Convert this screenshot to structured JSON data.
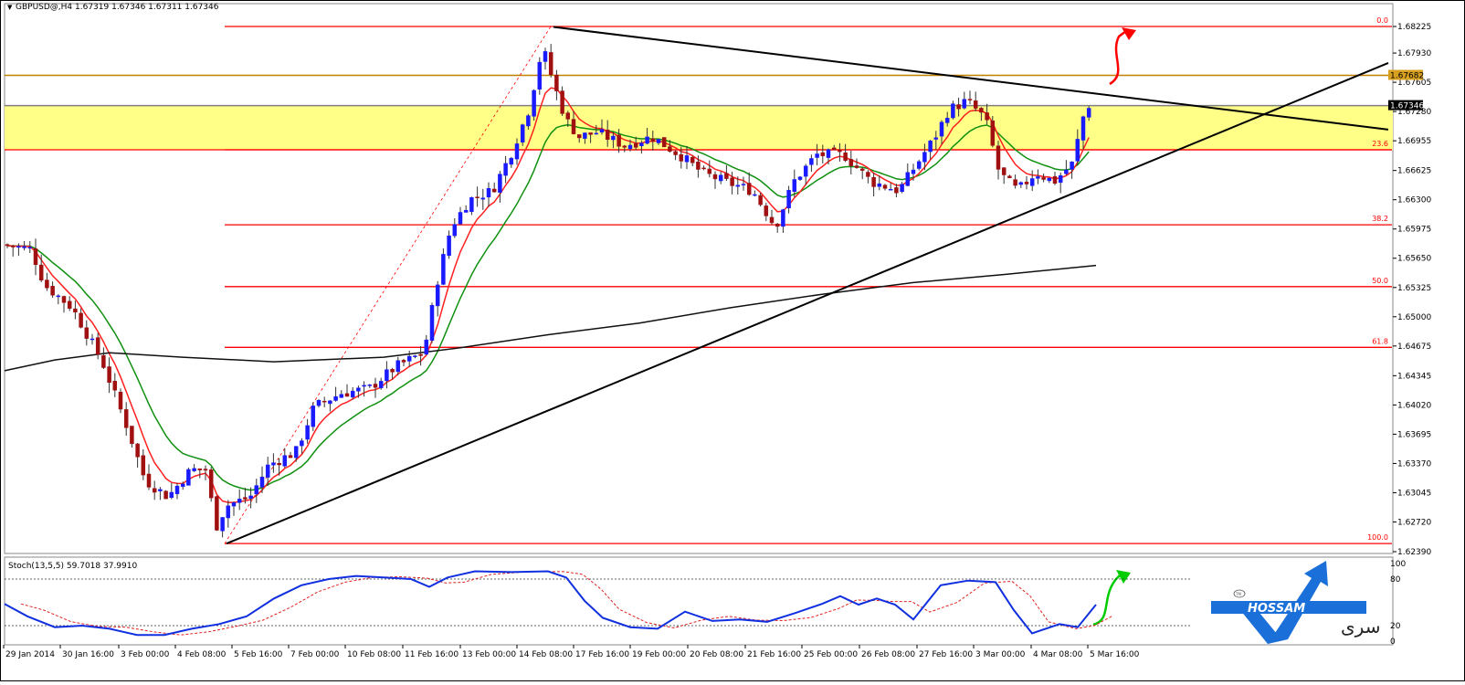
{
  "header": {
    "symbol_line": "GBPUSD@,H4  1.67319 1.67346 1.67311 1.67346",
    "dropdown_glyph": "▼"
  },
  "stoch_header": "Stoch(13,5,5) 59.7018 37.9910",
  "logo": {
    "text": "HOSSAM",
    "arabic": "سرى",
    "badge": "TM",
    "icon": "hossam-arrow-logo"
  },
  "colors": {
    "fib_line": "#ff0000",
    "resistance_line": "#c08000",
    "yellow_zone": "#ffff88",
    "bull_candle": "#1a1aff",
    "bear_candle": "#a01010",
    "green_ma": "#109010",
    "red_ma": "#ff2020",
    "long_ma": "#101010",
    "stoch_main": "#1030e0",
    "stoch_signal": "#e02020",
    "price_tag_bg": "#d8a020",
    "current_tag_bg": "#000000",
    "logo_blue": "#1a6fd8"
  },
  "price_axis": {
    "labels": [
      "1.68225",
      "1.67930",
      "1.67605",
      "1.67280",
      "1.66955",
      "1.66625",
      "1.66300",
      "1.65975",
      "1.65650",
      "1.65325",
      "1.65000",
      "1.64675",
      "1.64345",
      "1.64020",
      "1.63695",
      "1.63370",
      "1.63045",
      "1.62720",
      "1.62390"
    ],
    "min": 1.6239,
    "max": 1.68225,
    "tag_resistance": "1.67682",
    "tag_current": "1.67346"
  },
  "stoch_axis": {
    "labels": [
      "100",
      "80",
      "20",
      "0"
    ]
  },
  "time_axis": {
    "labels": [
      "29 Jan 2014",
      "30 Jan 16:00",
      "3 Feb 00:00",
      "4 Feb 08:00",
      "5 Feb 16:00",
      "7 Feb 00:00",
      "10 Feb 08:00",
      "11 Feb 16:00",
      "13 Feb 00:00",
      "14 Feb 08:00",
      "17 Feb 16:00",
      "19 Feb 00:00",
      "20 Feb 08:00",
      "21 Feb 16:00",
      "25 Feb 00:00",
      "26 Feb 08:00",
      "27 Feb 16:00",
      "3 Mar 00:00",
      "4 Mar 08:00",
      "5 Mar 16:00"
    ]
  },
  "fib_levels": [
    {
      "label": "0.0",
      "price": 1.68225
    },
    {
      "label": "23.6",
      "price": 1.66855
    },
    {
      "label": "38.2",
      "price": 1.66022
    },
    {
      "label": "50.0",
      "price": 1.65335
    },
    {
      "label": "61.8",
      "price": 1.6466
    },
    {
      "label": "100.0",
      "price": 1.6248
    }
  ],
  "chart_data": {
    "type": "candlestick",
    "title": "GBPUSD@,H4  1.67319 1.67346 1.67311 1.67346",
    "timeframe": "H4",
    "last": {
      "open": 1.67319,
      "high": 1.67346,
      "low": 1.67311,
      "close": 1.67346
    },
    "resistance_level": 1.67682,
    "current_price_level": 1.67346,
    "yellow_zone": [
      1.66855,
      1.6735
    ],
    "fib_retracement": {
      "from_low": 1.6248,
      "to_high": 1.68225,
      "levels": [
        0.0,
        23.6,
        38.2,
        50.0,
        61.8,
        100.0
      ]
    },
    "swing_points": [
      {
        "date": "29 Jan 2014",
        "price": 1.6585
      },
      {
        "date": "4 Feb 08:00",
        "price": 1.6277
      },
      {
        "date": "5 Feb 16:00",
        "price": 1.6248
      },
      {
        "date": "13 Feb 00:00",
        "price": 1.6585
      },
      {
        "date": "14 Feb 08:00",
        "price": 1.68225
      },
      {
        "date": "21 Feb 16:00",
        "price": 1.6593
      },
      {
        "date": "27 Feb 16:00",
        "price": 1.6775
      },
      {
        "date": "4 Mar 08:00",
        "price": 1.6655
      },
      {
        "date": "5 Mar 16:00",
        "price": 1.67346
      }
    ],
    "stochastic": {
      "k_period": 13,
      "d_period": 5,
      "slowing": 5,
      "main": 59.7018,
      "signal": 37.991,
      "levels": [
        20,
        80
      ]
    },
    "xlabel": "",
    "ylabel": ""
  }
}
